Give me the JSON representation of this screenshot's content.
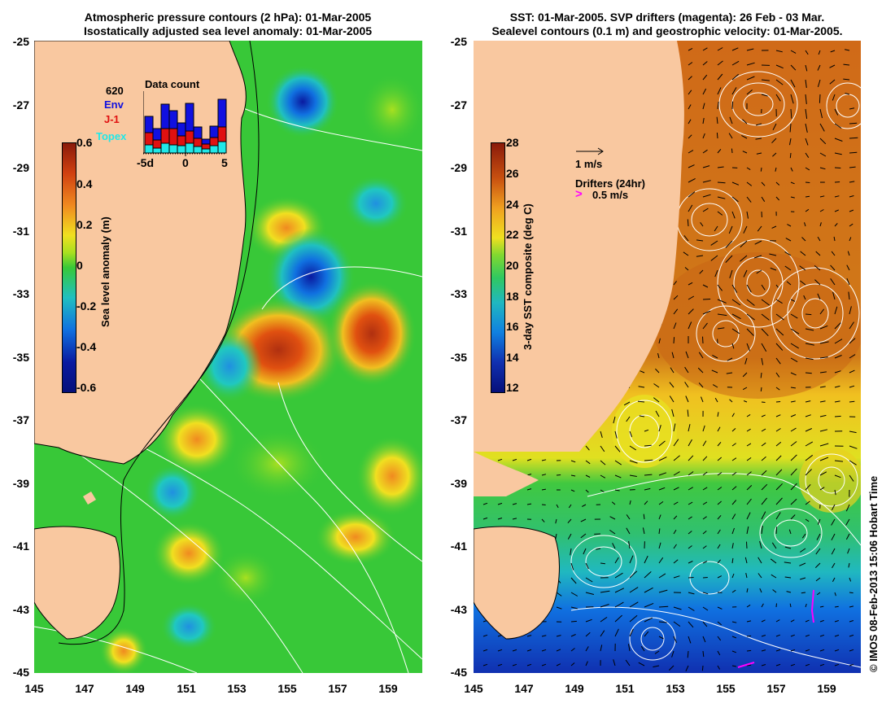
{
  "left_panel": {
    "title_line1": "Atmospheric pressure contours (2 hPa): 01-Mar-2005",
    "title_line2": "Isostatically adjusted sea level anomaly: 01-Mar-2005",
    "colorbar_label": "Sea level anomaly (m)",
    "colorbar_ticks": [
      "0.6",
      "0.4",
      "0.2",
      "0",
      "-0.2",
      "-0.4",
      "-0.6"
    ],
    "inset": {
      "title": "Data count",
      "count": "620",
      "env": "Env",
      "j1": "J-1",
      "topex": "Topex",
      "x_ticks": [
        "-5d",
        "0",
        "5"
      ],
      "colors": {
        "env": "#1010e0",
        "j1": "#e01010",
        "topex": "#20e8e8"
      },
      "bars": [
        {
          "topex": 10,
          "j1": 15,
          "env": 20
        },
        {
          "topex": 6,
          "j1": 10,
          "env": 14
        },
        {
          "topex": 12,
          "j1": 18,
          "env": 30
        },
        {
          "topex": 10,
          "j1": 20,
          "env": 22
        },
        {
          "topex": 9,
          "j1": 12,
          "env": 16
        },
        {
          "topex": 12,
          "j1": 15,
          "env": 34
        },
        {
          "topex": 8,
          "j1": 10,
          "env": 14
        },
        {
          "topex": 5,
          "j1": 6,
          "env": 6
        },
        {
          "topex": 9,
          "j1": 10,
          "env": 14
        },
        {
          "topex": 14,
          "j1": 18,
          "env": 34
        }
      ]
    }
  },
  "right_panel": {
    "title_line1": "SST: 01-Mar-2005. SVP drifters (magenta): 26 Feb - 03 Mar.",
    "title_line2": "Sealevel contours (0.1 m) and geostrophic velocity: 01-Mar-2005.",
    "colorbar_label": "3-day SST composite (deg C)",
    "colorbar_ticks": [
      "28",
      "26",
      "24",
      "22",
      "20",
      "18",
      "16",
      "14",
      "12"
    ],
    "velocity_legend": "1 m/s",
    "drifters_legend": "Drifters (24hr)",
    "drifters_speed": "0.5 m/s"
  },
  "axes": {
    "y_ticks": [
      "-25",
      "-27",
      "-29",
      "-31",
      "-33",
      "-35",
      "-37",
      "-39",
      "-41",
      "-43",
      "-45"
    ],
    "x_ticks": [
      "145",
      "147",
      "149",
      "151",
      "153",
      "155",
      "157",
      "159"
    ]
  },
  "credit": "© IMOS 08-Feb-2013 15:06 Hobart Time",
  "colors": {
    "land": "#f9c8a0",
    "sla_background": "#38c838",
    "drifter": "#ff00ff"
  }
}
